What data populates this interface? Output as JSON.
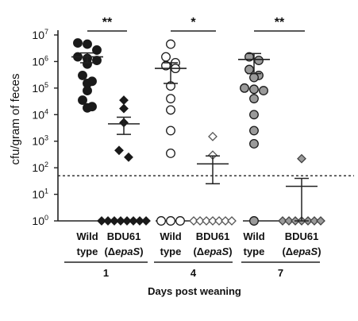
{
  "chart_data": {
    "type": "scatter",
    "title": "",
    "ylabel": "cfu/gram of feces",
    "xlabel": "Days post weaning",
    "y_scale": "log10",
    "ylim": [
      1,
      10000000
    ],
    "y_ticks": [
      {
        "base": "10",
        "exp": "0"
      },
      {
        "base": "10",
        "exp": "1"
      },
      {
        "base": "10",
        "exp": "2"
      },
      {
        "base": "10",
        "exp": "3"
      },
      {
        "base": "10",
        "exp": "4"
      },
      {
        "base": "10",
        "exp": "5"
      },
      {
        "base": "10",
        "exp": "6"
      },
      {
        "base": "10",
        "exp": "7"
      }
    ],
    "detection_limit": 50,
    "groups": [
      {
        "day": "1",
        "significance": "**",
        "strains": [
          {
            "label_line1": "Wild",
            "label_line2": "type",
            "marker": "circle",
            "fill": "#1a1a1a",
            "stroke": "#1a1a1a",
            "values": [
              4500000,
              5000000,
              2700000,
              1500000,
              1300000,
              1100000,
              800000,
              300000,
              150000,
              180000,
              80000,
              35000,
              20000,
              18000
            ],
            "mean": 1500000,
            "sem_low": 900000,
            "sem_high": 2100000
          },
          {
            "label_line1": "BDU61",
            "label_line2": "(ΔepaS)",
            "marker": "diamond",
            "fill": "#1a1a1a",
            "stroke": "#1a1a1a",
            "values": [
              35000,
              17000,
              5000,
              450,
              250,
              1,
              1,
              1,
              1,
              1,
              1,
              1,
              1
            ],
            "mean": 4500,
            "sem_low": 1800,
            "sem_high": 8000
          }
        ]
      },
      {
        "day": "4",
        "significance": "*",
        "strains": [
          {
            "label_line1": "Wild",
            "label_line2": "type",
            "marker": "circle",
            "fill": "#ffffff",
            "stroke": "#1a1a1a",
            "values": [
              4500000,
              1500000,
              900000,
              700000,
              550000,
              120000,
              40000,
              15000,
              2500,
              350,
              1,
              1,
              1
            ],
            "mean": 550000,
            "sem_low": 150000,
            "sem_high": 900000
          },
          {
            "label_line1": "BDU61",
            "label_line2": "(ΔepaS)",
            "marker": "diamond",
            "fill": "#ffffff",
            "stroke": "#555555",
            "values": [
              1500,
              300,
              1,
              1,
              1,
              1,
              1,
              1,
              1
            ],
            "mean": 140,
            "sem_low": 25,
            "sem_high": 280
          }
        ]
      },
      {
        "day": "7",
        "significance": "**",
        "strains": [
          {
            "label_line1": "Wild",
            "label_line2": "type",
            "marker": "circle",
            "fill": "#9a9a9a",
            "stroke": "#1a1a1a",
            "values": [
              1500000,
              1100000,
              500000,
              300000,
              250000,
              100000,
              90000,
              80000,
              40000,
              10000,
              2500,
              800,
              1
            ],
            "mean": 1200000,
            "sem_low": 350000,
            "sem_high": 2000000
          },
          {
            "label_line1": "BDU61",
            "label_line2": "(ΔepaS)",
            "marker": "diamond",
            "fill": "#9a9a9a",
            "stroke": "#444444",
            "values": [
              220,
              1,
              1,
              1,
              1,
              1,
              1,
              1
            ],
            "mean": 20,
            "sem_low": 1,
            "sem_high": 40
          }
        ]
      }
    ]
  }
}
